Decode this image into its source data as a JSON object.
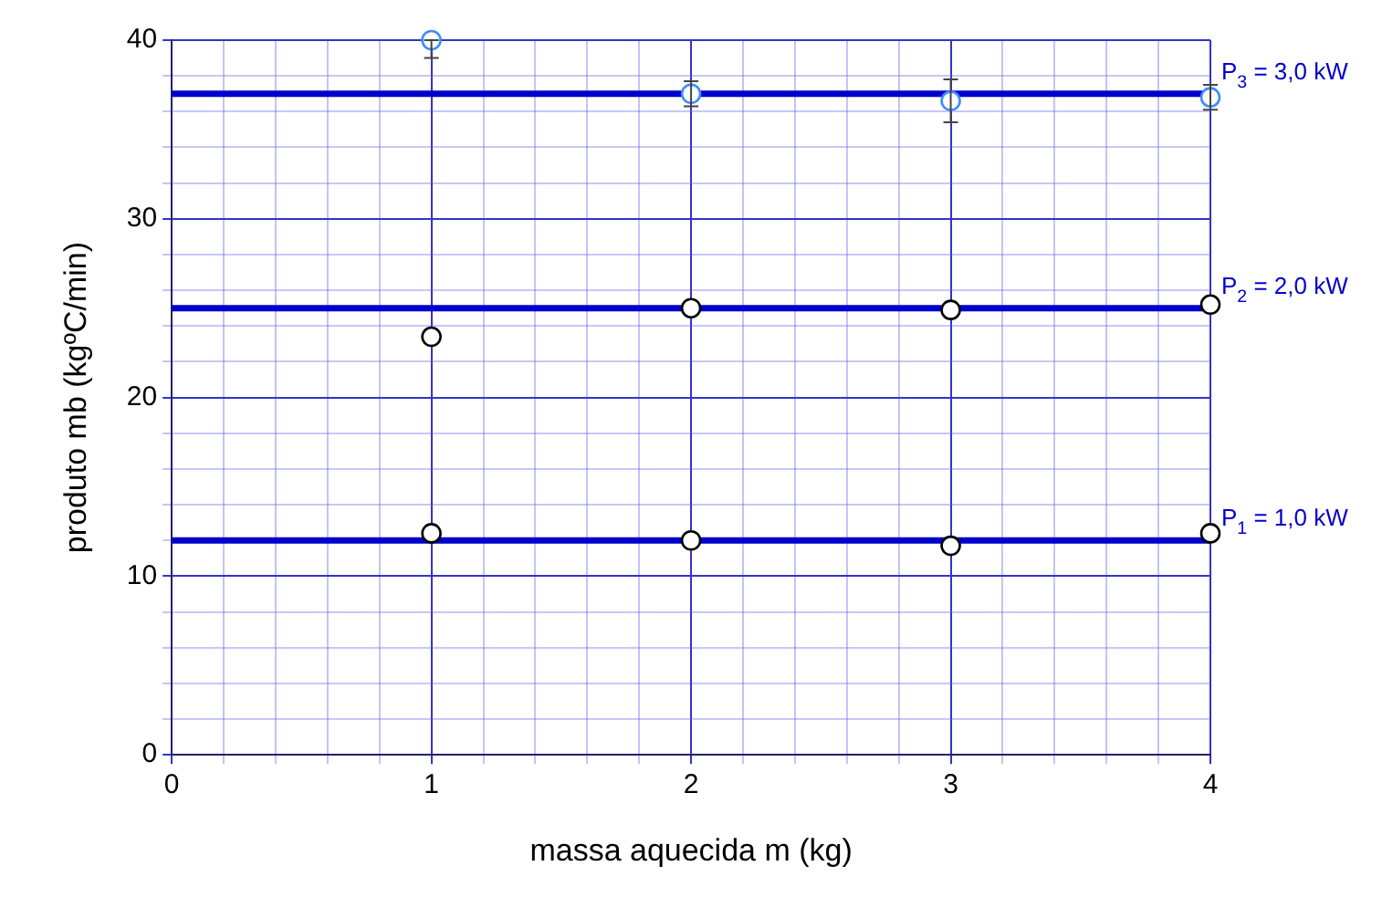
{
  "chart_data": {
    "type": "scatter",
    "xlabel": "massa aquecida m (kg)",
    "ylabel": "produto mb (kgºC/min)",
    "series": [
      {
        "type": "line",
        "name": "P$_{3}$ = 3,0 kW",
        "marker": "none",
        "color": "#0000cc",
        "x": [
          0,
          4
        ],
        "values": [
          37,
          37
        ]
      },
      {
        "type": "line",
        "name": "P$_{2}$ = 2,0 kW",
        "marker": "none",
        "color": "#0000cc",
        "x": [
          0,
          4
        ],
        "values": [
          25,
          25
        ]
      },
      {
        "type": "line",
        "name": "P$_{1}$ = 1,0 kW",
        "marker": "none",
        "color": "#0000cc",
        "x": [
          0,
          4
        ],
        "values": [
          12,
          12
        ]
      },
      {
        "color": "#3d8cff",
        "x": [
          1,
          2,
          3,
          4
        ],
        "values": [
          40,
          37,
          36.6,
          36.8
        ],
        "errors": [
          [
            39,
            40
          ],
          [
            36.3,
            37.7
          ],
          [
            35.4,
            37.8
          ],
          [
            36.1,
            37.5
          ]
        ]
      },
      {
        "color": "#000000",
        "x": [
          1,
          2,
          3,
          4
        ],
        "values": [
          23.4,
          25,
          24.9,
          25.2
        ]
      },
      {
        "color": "#000000",
        "x": [
          1,
          2,
          3,
          4
        ],
        "values": [
          12.4,
          12,
          11.7,
          12.4
        ]
      }
    ],
    "marker": "circle",
    "grid": true,
    "legend": false,
    "xlim": [
      0,
      4
    ],
    "xticks": [
      0,
      {
        "value": 0.2,
        "label": null
      },
      {
        "value": 0.4,
        "label": null
      },
      {
        "value": 0.6,
        "label": null
      },
      {
        "value": 0.8,
        "label": null
      },
      1,
      {
        "value": 1.2,
        "label": null
      },
      {
        "value": 1.4,
        "label": null
      },
      {
        "value": 1.6,
        "label": null
      },
      {
        "value": 1.8,
        "label": null
      },
      2,
      {
        "value": 2.2,
        "label": null
      },
      {
        "value": 2.4,
        "label": null
      },
      {
        "value": 2.6,
        "label": null
      },
      {
        "value": 2.8,
        "label": null
      },
      3,
      {
        "value": 3.2,
        "label": null
      },
      {
        "value": 3.4,
        "label": null
      },
      {
        "value": 3.6,
        "label": null
      },
      {
        "value": 3.8,
        "label": null
      },
      4
    ],
    "ylim": [
      0,
      40
    ],
    "yticks": [
      0,
      {
        "value": 2,
        "label": null
      },
      {
        "value": 4,
        "label": null
      },
      {
        "value": 6,
        "label": null
      },
      {
        "value": 8,
        "label": null
      },
      10,
      {
        "value": 12,
        "label": null
      },
      {
        "value": 14,
        "label": null
      },
      {
        "value": 16,
        "label": null
      },
      {
        "value": 18,
        "label": null
      },
      20,
      {
        "value": 22,
        "label": null
      },
      {
        "value": 24,
        "label": null
      },
      {
        "value": 26,
        "label": null
      },
      {
        "value": 28,
        "label": null
      },
      30,
      {
        "value": 32,
        "label": null
      },
      {
        "value": 34,
        "label": null
      },
      {
        "value": 36,
        "label": null
      },
      {
        "value": 38,
        "label": null
      },
      40
    ]
  }
}
